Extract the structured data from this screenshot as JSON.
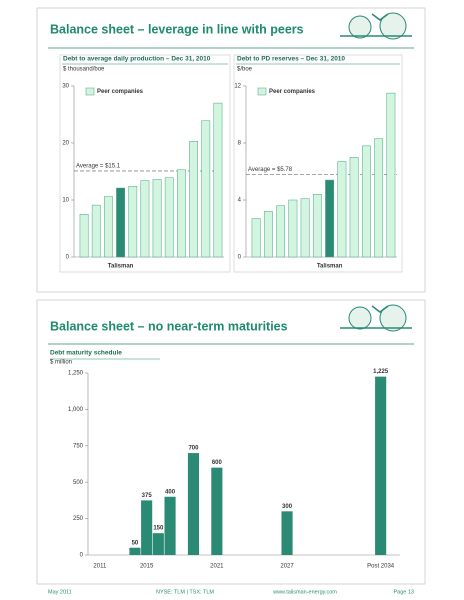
{
  "slides": [
    {
      "title": "Balance sheet – leverage in line with peers"
    },
    {
      "title": "Balance sheet – no near-term maturities"
    }
  ],
  "footer": {
    "date": "May 2011",
    "ticker": "NYSE: TLM | TSX: TLM",
    "url": "www.talisman-energy.com",
    "page": "Page 13"
  },
  "chart_data": [
    {
      "type": "bar",
      "title": "Debt to average daily production – Dec 31, 2010",
      "subtitle": "$ thousand/boe",
      "categories": [
        null,
        null,
        null,
        "Talisman",
        null,
        null,
        null,
        null,
        null,
        null,
        null,
        null
      ],
      "series": [
        {
          "name": "Peer companies",
          "color": "#d2f5e0",
          "colors": [
            "#d2f5e0",
            "#d2f5e0",
            "#d2f5e0",
            "#2a8a74",
            "#d2f5e0",
            "#d2f5e0",
            "#d2f5e0",
            "#d2f5e0",
            "#d2f5e0",
            "#d2f5e0",
            "#d2f5e0",
            "#d2f5e0"
          ],
          "values": [
            7.5,
            9.1,
            10.6,
            12.1,
            12.4,
            13.4,
            13.6,
            13.9,
            15.3,
            20.3,
            23.9,
            27
          ]
        }
      ],
      "ylim": [
        0,
        30
      ],
      "yticks": [
        0,
        10,
        20,
        30
      ],
      "legend": true,
      "reference_line": {
        "value": 15.1,
        "label": "Average = $15.1"
      }
    },
    {
      "type": "bar",
      "title": "Debt to PD reserves – Dec 31, 2010",
      "subtitle": "$/boe",
      "categories": [
        null,
        null,
        null,
        null,
        null,
        null,
        "Talisman",
        null,
        null,
        null,
        null,
        null
      ],
      "series": [
        {
          "name": "Peer companies",
          "color": "#d2f5e0",
          "colors": [
            "#d2f5e0",
            "#d2f5e0",
            "#d2f5e0",
            "#d2f5e0",
            "#d2f5e0",
            "#d2f5e0",
            "#2a8a74",
            "#d2f5e0",
            "#d2f5e0",
            "#d2f5e0",
            "#d2f5e0",
            "#d2f5e0"
          ],
          "values": [
            2.7,
            3.2,
            3.6,
            4.0,
            4.1,
            4.4,
            5.4,
            6.7,
            7.0,
            7.8,
            8.3,
            11.5
          ]
        }
      ],
      "ylim": [
        0,
        12
      ],
      "yticks": [
        0,
        4,
        8,
        12
      ],
      "legend": true,
      "reference_line": {
        "value": 5.78,
        "label": "Average = $5.78"
      }
    },
    {
      "type": "bar",
      "title": "Debt maturity schedule",
      "subtitle": "$ million",
      "categories": [
        "2011",
        null,
        null,
        null,
        "2015",
        null,
        null,
        null,
        null,
        null,
        "2021",
        null,
        null,
        null,
        null,
        null,
        "2027",
        null,
        null,
        null,
        null,
        null,
        null,
        null,
        "Post 2034"
      ],
      "series": [
        {
          "name": "Debt maturities",
          "color": "#2a8a74",
          "values": [
            null,
            null,
            null,
            50,
            375,
            150,
            400,
            null,
            700,
            null,
            600,
            null,
            null,
            null,
            null,
            null,
            300,
            null,
            null,
            null,
            null,
            null,
            null,
            null,
            1225
          ],
          "value_labels": [
            null,
            null,
            null,
            "50",
            "375",
            "150",
            "400",
            null,
            "700",
            null,
            "600",
            null,
            null,
            null,
            null,
            null,
            "300",
            null,
            null,
            null,
            null,
            null,
            null,
            null,
            "1,225"
          ]
        }
      ],
      "ylim": [
        0,
        1250
      ],
      "yticks": [
        0,
        250,
        500,
        750,
        {
          "value": 1000,
          "label": "1,000"
        },
        {
          "value": 1250,
          "label": "1,250"
        }
      ],
      "legend": false
    }
  ]
}
